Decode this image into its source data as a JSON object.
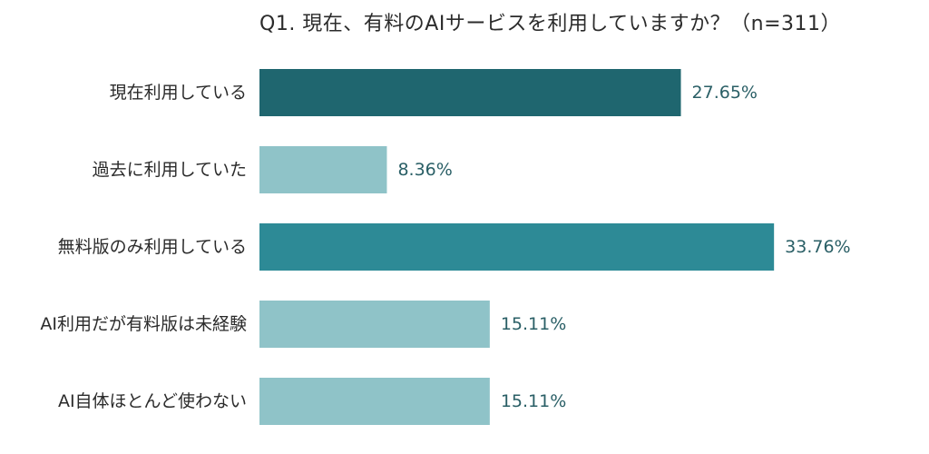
{
  "chart_data": {
    "type": "bar",
    "orientation": "horizontal",
    "title": "Q1. 現在、有料のAIサービスを利用していますか？（n=311）",
    "categories": [
      "現在利用している",
      "過去に利用していた",
      "無料版のみ利用している",
      "AI利用だが有料版は未経験",
      "AI自体ほとんど使わない"
    ],
    "values": [
      27.65,
      8.36,
      33.76,
      15.11,
      15.11
    ],
    "value_labels": [
      "27.65%",
      "8.36%",
      "33.76%",
      "15.11%",
      "15.11%"
    ],
    "colors": [
      "#1f666f",
      "#8fc3c8",
      "#2d8a96",
      "#8fc3c8",
      "#8fc3c8"
    ],
    "value_label_color": "#2a5f66",
    "xlim": [
      0,
      40
    ],
    "grid": false,
    "legend": "none"
  }
}
